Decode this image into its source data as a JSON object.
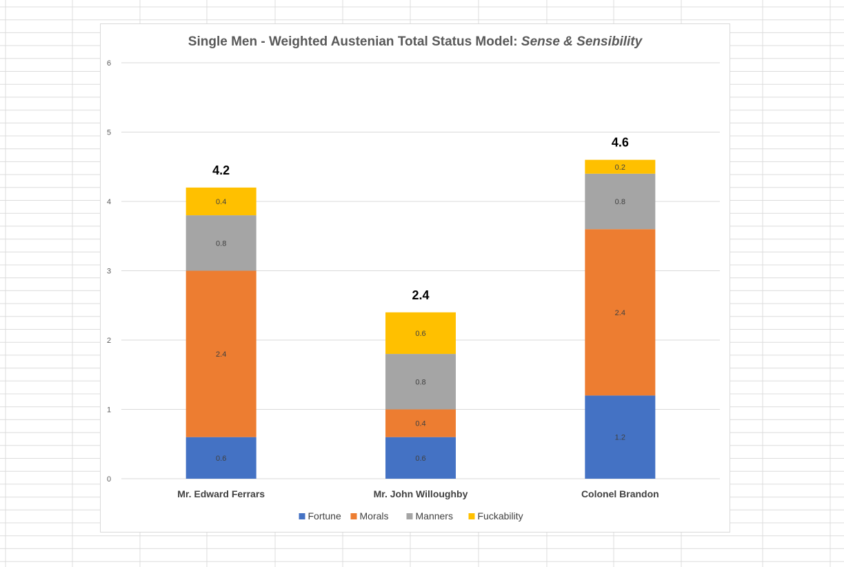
{
  "chart_data": {
    "type": "bar",
    "stacked": true,
    "title": "Single Men - Weighted Austenian Total Status Model: ",
    "title_italic": "Sense & Sensibility",
    "categories": [
      "Mr. Edward Ferrars",
      "Mr. John Willoughby",
      "Colonel Brandon"
    ],
    "series": [
      {
        "name": "Fortune",
        "color": "#4472c4",
        "values": [
          0.6,
          0.6,
          1.2
        ]
      },
      {
        "name": "Morals",
        "color": "#ed7d31",
        "values": [
          2.4,
          0.4,
          2.4
        ]
      },
      {
        "name": "Manners",
        "color": "#a5a5a5",
        "values": [
          0.8,
          0.8,
          0.8
        ]
      },
      {
        "name": "Fuckability",
        "color": "#ffc000",
        "values": [
          0.4,
          0.6,
          0.2
        ]
      }
    ],
    "totals": [
      4.2,
      2.4,
      4.6
    ],
    "ylim": [
      0,
      6
    ],
    "yticks": [
      0,
      1,
      2,
      3,
      4,
      5,
      6
    ],
    "grid": true,
    "legend_position": "bottom"
  }
}
